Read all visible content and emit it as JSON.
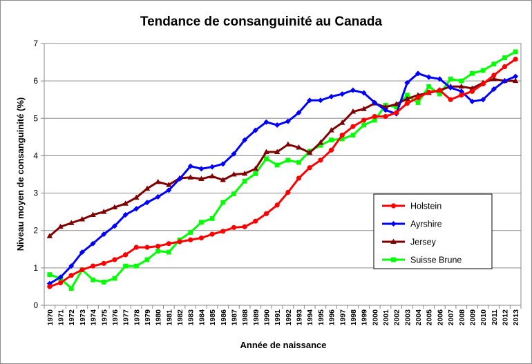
{
  "chart_data": {
    "type": "line",
    "title": "Tendance de consanguinité au Canada",
    "xlabel": "Année de naissance",
    "ylabel": "Niveau moyen de consanguinité (%)",
    "ylim": [
      0,
      7
    ],
    "yticks": [
      0,
      1,
      2,
      3,
      4,
      5,
      6,
      7
    ],
    "grid": "horizontal",
    "legend_position": "right",
    "x": [
      1970,
      1971,
      1972,
      1973,
      1974,
      1975,
      1976,
      1977,
      1978,
      1979,
      1980,
      1981,
      1982,
      1983,
      1984,
      1985,
      1986,
      1987,
      1988,
      1989,
      1990,
      1991,
      1992,
      1993,
      1994,
      1995,
      1996,
      1997,
      1998,
      1999,
      2000,
      2001,
      2002,
      2003,
      2004,
      2005,
      2006,
      2007,
      2008,
      2009,
      2010,
      2011,
      2012,
      2013
    ],
    "series": [
      {
        "name": "Holstein",
        "color": "#ff0000",
        "marker": "circle",
        "values": [
          0.5,
          0.6,
          0.8,
          0.95,
          1.05,
          1.12,
          1.22,
          1.35,
          1.55,
          1.55,
          1.58,
          1.65,
          1.7,
          1.75,
          1.8,
          1.9,
          1.98,
          2.08,
          2.1,
          2.25,
          2.45,
          2.68,
          3.02,
          3.4,
          3.68,
          3.88,
          4.15,
          4.55,
          4.78,
          4.95,
          5.05,
          5.05,
          5.15,
          5.4,
          5.55,
          5.7,
          5.75,
          5.5,
          5.62,
          5.72,
          5.92,
          6.15,
          6.38,
          6.58
        ]
      },
      {
        "name": "Ayrshire",
        "color": "#0000ff",
        "marker": "diamond",
        "values": [
          0.58,
          0.75,
          1.05,
          1.42,
          1.65,
          1.9,
          2.12,
          2.42,
          2.58,
          2.75,
          2.9,
          3.08,
          3.38,
          3.72,
          3.65,
          3.7,
          3.78,
          4.05,
          4.42,
          4.68,
          4.9,
          4.82,
          4.92,
          5.15,
          5.48,
          5.48,
          5.58,
          5.65,
          5.75,
          5.68,
          5.42,
          5.22,
          5.12,
          5.95,
          6.2,
          6.1,
          6.05,
          5.82,
          5.72,
          5.45,
          5.5,
          5.78,
          6.0,
          6.12
        ]
      },
      {
        "name": "Jersey",
        "color": "#7f0000",
        "marker": "triangle",
        "values": [
          1.85,
          2.1,
          2.2,
          2.3,
          2.42,
          2.5,
          2.62,
          2.72,
          2.88,
          3.12,
          3.3,
          3.22,
          3.4,
          3.42,
          3.38,
          3.45,
          3.35,
          3.5,
          3.52,
          3.65,
          4.1,
          4.1,
          4.3,
          4.22,
          4.08,
          4.35,
          4.68,
          4.88,
          5.18,
          5.25,
          5.4,
          5.3,
          5.38,
          5.52,
          5.62,
          5.68,
          5.75,
          5.85,
          5.85,
          5.8,
          5.95,
          6.05,
          6.0,
          6.0
        ]
      },
      {
        "name": "Suisse Brune",
        "color": "#00ff00",
        "marker": "square",
        "values": [
          0.82,
          0.72,
          0.45,
          0.95,
          0.68,
          0.62,
          0.72,
          1.05,
          1.05,
          1.22,
          1.45,
          1.42,
          1.75,
          1.95,
          2.22,
          2.32,
          2.75,
          2.98,
          3.32,
          3.52,
          3.92,
          3.75,
          3.88,
          3.82,
          4.12,
          4.28,
          4.42,
          4.45,
          4.55,
          4.82,
          4.95,
          5.35,
          5.3,
          5.62,
          5.42,
          5.85,
          5.65,
          6.05,
          6.0,
          6.2,
          6.28,
          6.45,
          6.62,
          6.78
        ]
      }
    ]
  }
}
